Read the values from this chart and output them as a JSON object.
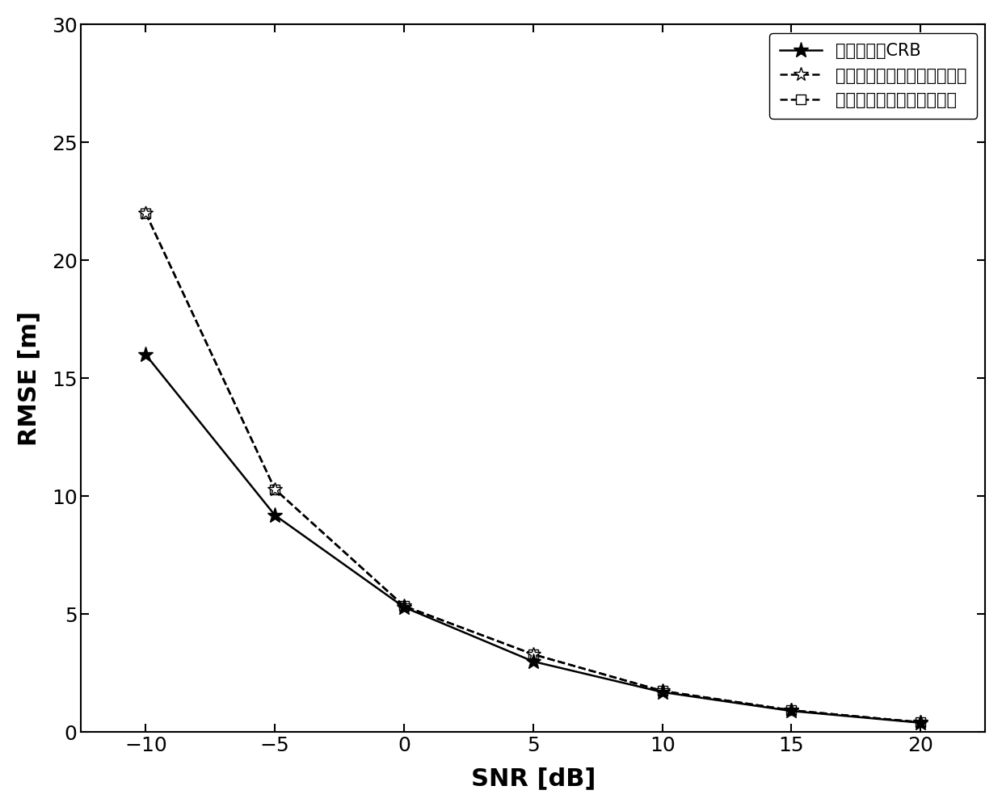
{
  "snr": [
    -10,
    -5,
    0,
    5,
    10,
    15,
    20
  ],
  "crb": [
    16.0,
    9.2,
    5.3,
    3.0,
    1.7,
    0.9,
    0.4
  ],
  "grid_search": [
    22.0,
    10.3,
    5.35,
    3.3,
    1.75,
    0.93,
    0.42
  ],
  "quasi_newton": [
    22.0,
    10.3,
    5.35,
    3.3,
    1.75,
    0.93,
    0.42
  ],
  "xlabel": "SNR [dB]",
  "ylabel": "RMSE [m]",
  "xlim": [
    -12.5,
    22.5
  ],
  "ylim": [
    0,
    30
  ],
  "xticks": [
    -10,
    -5,
    0,
    5,
    10,
    15,
    20
  ],
  "yticks": [
    0,
    5,
    10,
    15,
    20,
    25,
    30
  ],
  "legend_crb": "目标位置的CRB",
  "legend_grid": "基于网格搜索的直接定位方法",
  "legend_qn": "基于拟牛顿的直接定位方法",
  "color": "#000000",
  "linewidth": 1.8,
  "markersize_star_filled": 14,
  "markersize_star_open": 13,
  "markersize_sq": 8
}
